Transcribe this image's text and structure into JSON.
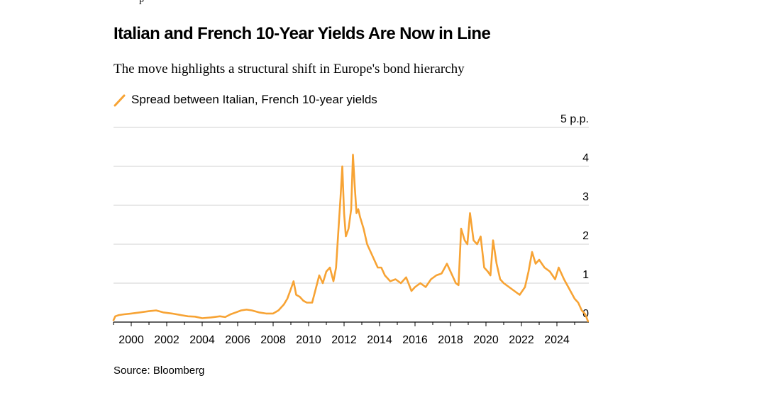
{
  "header": {
    "top_fragment": "p",
    "title": "Italian and French 10-Year Yields Are Now in Line",
    "subtitle": "The move highlights a structural shift in Europe's bond hierarchy"
  },
  "footer": {
    "source": "Source: Bloomberg"
  },
  "colors": {
    "series": "#f7a334",
    "grid": "#d2d2d2",
    "axis": "#000000"
  },
  "chart_data": {
    "type": "line",
    "title": "Italian and French 10-Year Yields Are Now in Line",
    "subtitle": "The move highlights a structural shift in Europe's bond hierarchy",
    "xlabel": "",
    "ylabel": "p.p.",
    "xlim": [
      1999.0,
      2025.8
    ],
    "ylim": [
      0,
      5
    ],
    "yticks": [
      0,
      1,
      2,
      3,
      4,
      5
    ],
    "ytick_labels": [
      "0",
      "1",
      "2",
      "3",
      "4",
      "5 p.p."
    ],
    "xticks": [
      2000,
      2002,
      2004,
      2006,
      2008,
      2010,
      2012,
      2014,
      2016,
      2018,
      2020,
      2022,
      2024
    ],
    "xtick_labels": [
      "2000",
      "2002",
      "2004",
      "2006",
      "2008",
      "2010",
      "2012",
      "2014",
      "2016",
      "2018",
      "2020",
      "2022",
      "2024"
    ],
    "grid": true,
    "legend_position": "top-left",
    "series": [
      {
        "name": "Spread between Italian, French 10-year yields",
        "x": [
          1999.0,
          1999.1,
          1999.3,
          1999.6,
          2000.0,
          2000.5,
          2001.0,
          2001.4,
          2001.8,
          2002.3,
          2002.8,
          2003.2,
          2003.6,
          2004.0,
          2004.5,
          2005.0,
          2005.3,
          2005.6,
          2005.9,
          2006.2,
          2006.5,
          2006.8,
          2007.2,
          2007.6,
          2008.0,
          2008.3,
          2008.6,
          2008.8,
          2009.0,
          2009.15,
          2009.3,
          2009.5,
          2009.7,
          2009.9,
          2010.2,
          2010.4,
          2010.6,
          2010.8,
          2011.0,
          2011.2,
          2011.4,
          2011.55,
          2011.7,
          2011.8,
          2011.9,
          2012.0,
          2012.1,
          2012.25,
          2012.4,
          2012.5,
          2012.6,
          2012.7,
          2012.8,
          2012.9,
          2013.1,
          2013.3,
          2013.5,
          2013.7,
          2013.9,
          2014.1,
          2014.3,
          2014.6,
          2014.9,
          2015.2,
          2015.5,
          2015.8,
          2016.0,
          2016.3,
          2016.6,
          2016.9,
          2017.2,
          2017.5,
          2017.8,
          2018.1,
          2018.3,
          2018.45,
          2018.6,
          2018.8,
          2018.95,
          2019.1,
          2019.3,
          2019.5,
          2019.7,
          2019.9,
          2020.1,
          2020.25,
          2020.4,
          2020.6,
          2020.8,
          2021.0,
          2021.3,
          2021.6,
          2021.9,
          2022.2,
          2022.4,
          2022.6,
          2022.8,
          2023.0,
          2023.3,
          2023.6,
          2023.9,
          2024.1,
          2024.4,
          2024.7,
          2025.0,
          2025.2,
          2025.4,
          2025.6,
          2025.75
        ],
        "values": [
          0.05,
          0.15,
          0.18,
          0.2,
          0.22,
          0.25,
          0.28,
          0.3,
          0.25,
          0.22,
          0.18,
          0.15,
          0.14,
          0.1,
          0.12,
          0.15,
          0.13,
          0.2,
          0.25,
          0.3,
          0.32,
          0.3,
          0.25,
          0.22,
          0.22,
          0.3,
          0.45,
          0.6,
          0.85,
          1.05,
          0.7,
          0.65,
          0.55,
          0.5,
          0.5,
          0.85,
          1.2,
          1.0,
          1.3,
          1.4,
          1.05,
          1.4,
          2.5,
          3.2,
          4.0,
          2.8,
          2.2,
          2.4,
          2.9,
          4.3,
          3.5,
          2.8,
          2.9,
          2.7,
          2.4,
          2.0,
          1.8,
          1.6,
          1.4,
          1.4,
          1.2,
          1.05,
          1.1,
          1.0,
          1.15,
          0.8,
          0.9,
          1.0,
          0.9,
          1.1,
          1.2,
          1.25,
          1.5,
          1.2,
          1.0,
          0.95,
          2.4,
          2.1,
          2.0,
          2.8,
          2.1,
          2.0,
          2.2,
          1.4,
          1.3,
          1.2,
          2.1,
          1.5,
          1.1,
          1.0,
          0.9,
          0.8,
          0.7,
          0.9,
          1.3,
          1.8,
          1.5,
          1.6,
          1.4,
          1.3,
          1.1,
          1.4,
          1.1,
          0.85,
          0.6,
          0.5,
          0.3,
          0.2,
          0.02
        ]
      }
    ]
  }
}
